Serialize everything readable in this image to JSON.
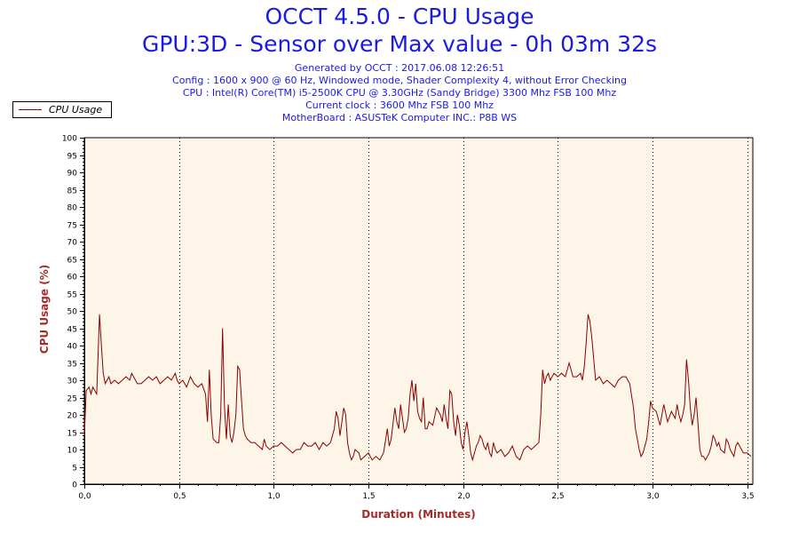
{
  "header": {
    "title": "OCCT 4.5.0 - CPU Usage",
    "subtitle": "GPU:3D - Sensor over Max value - 0h 03m 32s",
    "info": [
      "Generated by OCCT : 2017.06.08 12:26:51",
      "Config : 1600 x 900 @ 60 Hz, Windowed mode, Shader Complexity 4, without Error Checking",
      "CPU : Intel(R) Core(TM) i5-2500K CPU @ 3.30GHz (Sandy Bridge) 3300 Mhz FSB 100 Mhz",
      "Current clock : 3600 Mhz FSB 100 Mhz",
      "MotherBoard : ASUSTeK Computer INC.: P8B WS"
    ]
  },
  "colors": {
    "line": "#8b0000",
    "plot_bg": "#fdf6e8",
    "title": "#1a1ae6",
    "axis_label": "#a52a2a"
  },
  "chart_data": {
    "type": "line",
    "title": "OCCT 4.5.0 - CPU Usage",
    "xlabel": "Duration (Minutes)",
    "ylabel": "CPU Usage (%)",
    "xlim": [
      0,
      3.53
    ],
    "ylim": [
      0,
      100
    ],
    "x_ticks": [
      "0,0",
      "0,5",
      "1,0",
      "1,5",
      "2,0",
      "2,5",
      "3,0",
      "3,5"
    ],
    "x_tick_values": [
      0,
      0.5,
      1.0,
      1.5,
      2.0,
      2.5,
      3.0,
      3.5
    ],
    "y_ticks": [
      0,
      5,
      10,
      15,
      20,
      25,
      30,
      35,
      40,
      45,
      50,
      55,
      60,
      65,
      70,
      75,
      80,
      85,
      90,
      95,
      100
    ],
    "grid": "vertical dotted at x ticks",
    "legend_position": "top-left",
    "series": [
      {
        "name": "CPU Usage",
        "points": [
          [
            0.0,
            14
          ],
          [
            0.01,
            27
          ],
          [
            0.025,
            28
          ],
          [
            0.035,
            26
          ],
          [
            0.045,
            28
          ],
          [
            0.055,
            27
          ],
          [
            0.065,
            26
          ],
          [
            0.08,
            49
          ],
          [
            0.09,
            40
          ],
          [
            0.1,
            32
          ],
          [
            0.11,
            29
          ],
          [
            0.13,
            31
          ],
          [
            0.14,
            29
          ],
          [
            0.16,
            30
          ],
          [
            0.18,
            29
          ],
          [
            0.2,
            30
          ],
          [
            0.22,
            31
          ],
          [
            0.24,
            30
          ],
          [
            0.25,
            32
          ],
          [
            0.27,
            30
          ],
          [
            0.28,
            29
          ],
          [
            0.3,
            29
          ],
          [
            0.32,
            30
          ],
          [
            0.34,
            31
          ],
          [
            0.36,
            30
          ],
          [
            0.38,
            31
          ],
          [
            0.4,
            29
          ],
          [
            0.42,
            30
          ],
          [
            0.44,
            31
          ],
          [
            0.46,
            30
          ],
          [
            0.48,
            32
          ],
          [
            0.49,
            30
          ],
          [
            0.5,
            29
          ],
          [
            0.52,
            30
          ],
          [
            0.54,
            28
          ],
          [
            0.56,
            31
          ],
          [
            0.58,
            29
          ],
          [
            0.6,
            28
          ],
          [
            0.62,
            29
          ],
          [
            0.64,
            26
          ],
          [
            0.65,
            18
          ],
          [
            0.66,
            33
          ],
          [
            0.67,
            20
          ],
          [
            0.68,
            13
          ],
          [
            0.7,
            12
          ],
          [
            0.71,
            12
          ],
          [
            0.72,
            20
          ],
          [
            0.73,
            45
          ],
          [
            0.74,
            22
          ],
          [
            0.75,
            13
          ],
          [
            0.76,
            23
          ],
          [
            0.77,
            14
          ],
          [
            0.78,
            12
          ],
          [
            0.79,
            15
          ],
          [
            0.8,
            20
          ],
          [
            0.81,
            34
          ],
          [
            0.82,
            33
          ],
          [
            0.83,
            24
          ],
          [
            0.84,
            16
          ],
          [
            0.85,
            14
          ],
          [
            0.86,
            13
          ],
          [
            0.88,
            12
          ],
          [
            0.9,
            12
          ],
          [
            0.92,
            11
          ],
          [
            0.94,
            10
          ],
          [
            0.95,
            13
          ],
          [
            0.96,
            11
          ],
          [
            0.98,
            10
          ],
          [
            1.0,
            11
          ],
          [
            1.02,
            11
          ],
          [
            1.04,
            12
          ],
          [
            1.06,
            11
          ],
          [
            1.08,
            10
          ],
          [
            1.1,
            9
          ],
          [
            1.12,
            10
          ],
          [
            1.14,
            10
          ],
          [
            1.16,
            12
          ],
          [
            1.18,
            11
          ],
          [
            1.2,
            11
          ],
          [
            1.22,
            12
          ],
          [
            1.24,
            10
          ],
          [
            1.26,
            12
          ],
          [
            1.28,
            11
          ],
          [
            1.3,
            12
          ],
          [
            1.32,
            16
          ],
          [
            1.33,
            21
          ],
          [
            1.34,
            19
          ],
          [
            1.35,
            14
          ],
          [
            1.36,
            18
          ],
          [
            1.37,
            22
          ],
          [
            1.38,
            20
          ],
          [
            1.39,
            12
          ],
          [
            1.4,
            9
          ],
          [
            1.41,
            7
          ],
          [
            1.42,
            8
          ],
          [
            1.43,
            10
          ],
          [
            1.45,
            9
          ],
          [
            1.46,
            7
          ],
          [
            1.48,
            8
          ],
          [
            1.5,
            9
          ],
          [
            1.52,
            7
          ],
          [
            1.54,
            8
          ],
          [
            1.56,
            7
          ],
          [
            1.58,
            9
          ],
          [
            1.6,
            16
          ],
          [
            1.61,
            11
          ],
          [
            1.62,
            13
          ],
          [
            1.64,
            22
          ],
          [
            1.65,
            18
          ],
          [
            1.66,
            16
          ],
          [
            1.67,
            23
          ],
          [
            1.68,
            19
          ],
          [
            1.69,
            15
          ],
          [
            1.7,
            16
          ],
          [
            1.71,
            19
          ],
          [
            1.72,
            26
          ],
          [
            1.73,
            30
          ],
          [
            1.74,
            24
          ],
          [
            1.75,
            29
          ],
          [
            1.76,
            21
          ],
          [
            1.77,
            19
          ],
          [
            1.78,
            18
          ],
          [
            1.79,
            25
          ],
          [
            1.8,
            16
          ],
          [
            1.81,
            16
          ],
          [
            1.82,
            18
          ],
          [
            1.84,
            17
          ],
          [
            1.86,
            22
          ],
          [
            1.88,
            20
          ],
          [
            1.89,
            18
          ],
          [
            1.9,
            23
          ],
          [
            1.91,
            19
          ],
          [
            1.92,
            16
          ],
          [
            1.93,
            27
          ],
          [
            1.94,
            26
          ],
          [
            1.95,
            18
          ],
          [
            1.96,
            14
          ],
          [
            1.97,
            20
          ],
          [
            1.98,
            17
          ],
          [
            1.99,
            12
          ],
          [
            2.0,
            10
          ],
          [
            2.01,
            15
          ],
          [
            2.02,
            18
          ],
          [
            2.03,
            14
          ],
          [
            2.04,
            9
          ],
          [
            2.05,
            7
          ],
          [
            2.06,
            9
          ],
          [
            2.07,
            11
          ],
          [
            2.08,
            12
          ],
          [
            2.09,
            14
          ],
          [
            2.1,
            13
          ],
          [
            2.11,
            11
          ],
          [
            2.12,
            10
          ],
          [
            2.13,
            12
          ],
          [
            2.14,
            9
          ],
          [
            2.15,
            8
          ],
          [
            2.16,
            12
          ],
          [
            2.17,
            10
          ],
          [
            2.18,
            9
          ],
          [
            2.2,
            10
          ],
          [
            2.22,
            8
          ],
          [
            2.24,
            9
          ],
          [
            2.26,
            11
          ],
          [
            2.28,
            8
          ],
          [
            2.3,
            7
          ],
          [
            2.32,
            10
          ],
          [
            2.34,
            11
          ],
          [
            2.36,
            10
          ],
          [
            2.38,
            11
          ],
          [
            2.4,
            12
          ],
          [
            2.41,
            20
          ],
          [
            2.42,
            33
          ],
          [
            2.43,
            29
          ],
          [
            2.44,
            31
          ],
          [
            2.45,
            32
          ],
          [
            2.46,
            30
          ],
          [
            2.48,
            32
          ],
          [
            2.5,
            31
          ],
          [
            2.52,
            32
          ],
          [
            2.54,
            31
          ],
          [
            2.56,
            35
          ],
          [
            2.58,
            31
          ],
          [
            2.6,
            31
          ],
          [
            2.62,
            32
          ],
          [
            2.63,
            30
          ],
          [
            2.64,
            34
          ],
          [
            2.65,
            41
          ],
          [
            2.66,
            49
          ],
          [
            2.67,
            47
          ],
          [
            2.68,
            42
          ],
          [
            2.7,
            30
          ],
          [
            2.72,
            31
          ],
          [
            2.74,
            29
          ],
          [
            2.76,
            30
          ],
          [
            2.78,
            29
          ],
          [
            2.8,
            28
          ],
          [
            2.82,
            30
          ],
          [
            2.84,
            31
          ],
          [
            2.86,
            31
          ],
          [
            2.88,
            29
          ],
          [
            2.9,
            22
          ],
          [
            2.91,
            16
          ],
          [
            2.92,
            13
          ],
          [
            2.93,
            10
          ],
          [
            2.94,
            8
          ],
          [
            2.95,
            9
          ],
          [
            2.97,
            13
          ],
          [
            2.98,
            18
          ],
          [
            2.99,
            24
          ],
          [
            3.0,
            22
          ],
          [
            3.02,
            21
          ],
          [
            3.04,
            17
          ],
          [
            3.05,
            20
          ],
          [
            3.06,
            23
          ],
          [
            3.08,
            18
          ],
          [
            3.1,
            21
          ],
          [
            3.12,
            19
          ],
          [
            3.13,
            23
          ],
          [
            3.14,
            20
          ],
          [
            3.15,
            18
          ],
          [
            3.16,
            20
          ],
          [
            3.17,
            23
          ],
          [
            3.18,
            36
          ],
          [
            3.19,
            30
          ],
          [
            3.2,
            22
          ],
          [
            3.21,
            17
          ],
          [
            3.22,
            20
          ],
          [
            3.23,
            25
          ],
          [
            3.24,
            18
          ],
          [
            3.25,
            10
          ],
          [
            3.26,
            8
          ],
          [
            3.27,
            8
          ],
          [
            3.28,
            7
          ],
          [
            3.29,
            8
          ],
          [
            3.3,
            9
          ],
          [
            3.31,
            11
          ],
          [
            3.32,
            14
          ],
          [
            3.33,
            13
          ],
          [
            3.34,
            11
          ],
          [
            3.35,
            12
          ],
          [
            3.36,
            10
          ],
          [
            3.38,
            9
          ],
          [
            3.39,
            13
          ],
          [
            3.4,
            12
          ],
          [
            3.41,
            10
          ],
          [
            3.42,
            9
          ],
          [
            3.43,
            8
          ],
          [
            3.44,
            11
          ],
          [
            3.45,
            12
          ],
          [
            3.46,
            11
          ],
          [
            3.47,
            10
          ],
          [
            3.48,
            9
          ],
          [
            3.5,
            9
          ],
          [
            3.52,
            8
          ]
        ]
      }
    ]
  }
}
